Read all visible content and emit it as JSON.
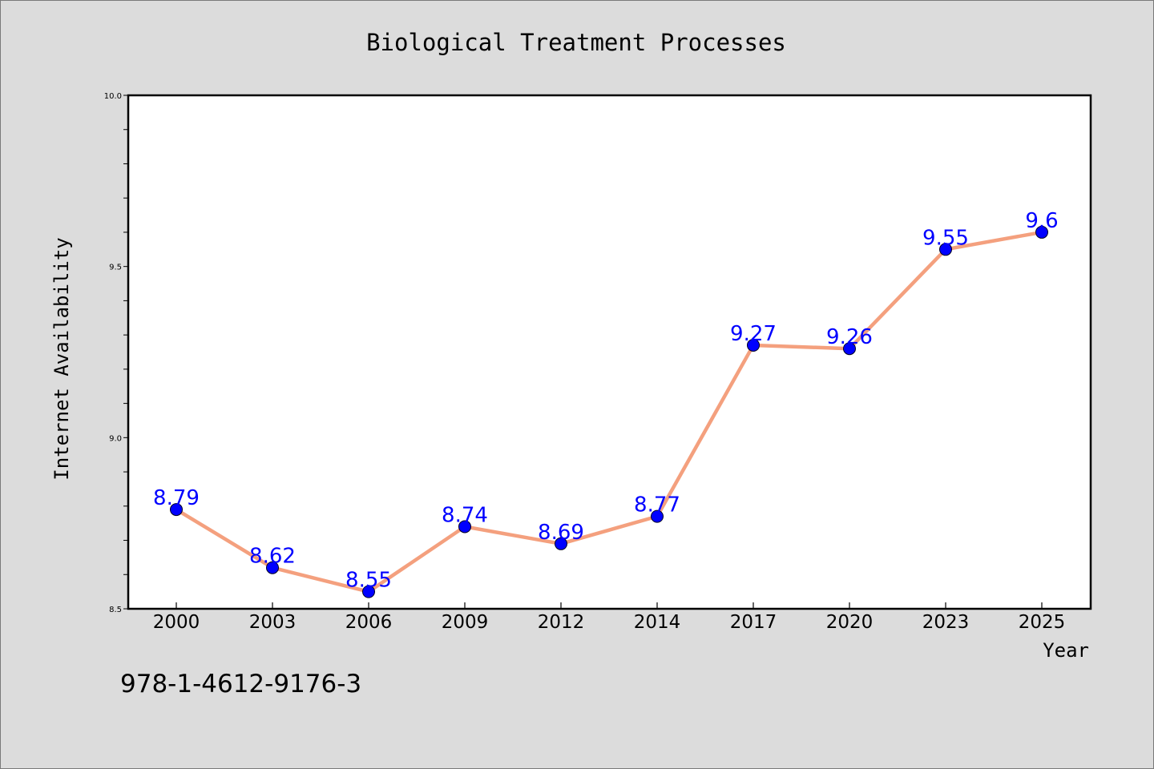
{
  "chart_data": {
    "type": "line",
    "title": "Biological Treatment Processes",
    "xlabel": "Year",
    "ylabel": "Internet Availability",
    "categories": [
      "2000",
      "2003",
      "2006",
      "2009",
      "2012",
      "2014",
      "2017",
      "2020",
      "2023",
      "2025"
    ],
    "values": [
      8.79,
      8.62,
      8.55,
      8.74,
      8.69,
      8.77,
      9.27,
      9.26,
      9.55,
      9.6
    ],
    "data_labels": [
      "8.79",
      "8.62",
      "8.55",
      "8.74",
      "8.69",
      "8.77",
      "9.27",
      "9.26",
      "9.55",
      "9.6"
    ],
    "ylim": [
      8.5,
      10.0
    ],
    "y_major_ticks": [
      "8.5",
      "9.0",
      "9.5",
      "10.0"
    ],
    "y_minor_step": 0.1,
    "grid": false,
    "legend": "none",
    "line_color": "#f4a07e",
    "marker_color": "#0000ff",
    "label_color": "#0000ff"
  },
  "annotation": "978-1-4612-9176-3"
}
